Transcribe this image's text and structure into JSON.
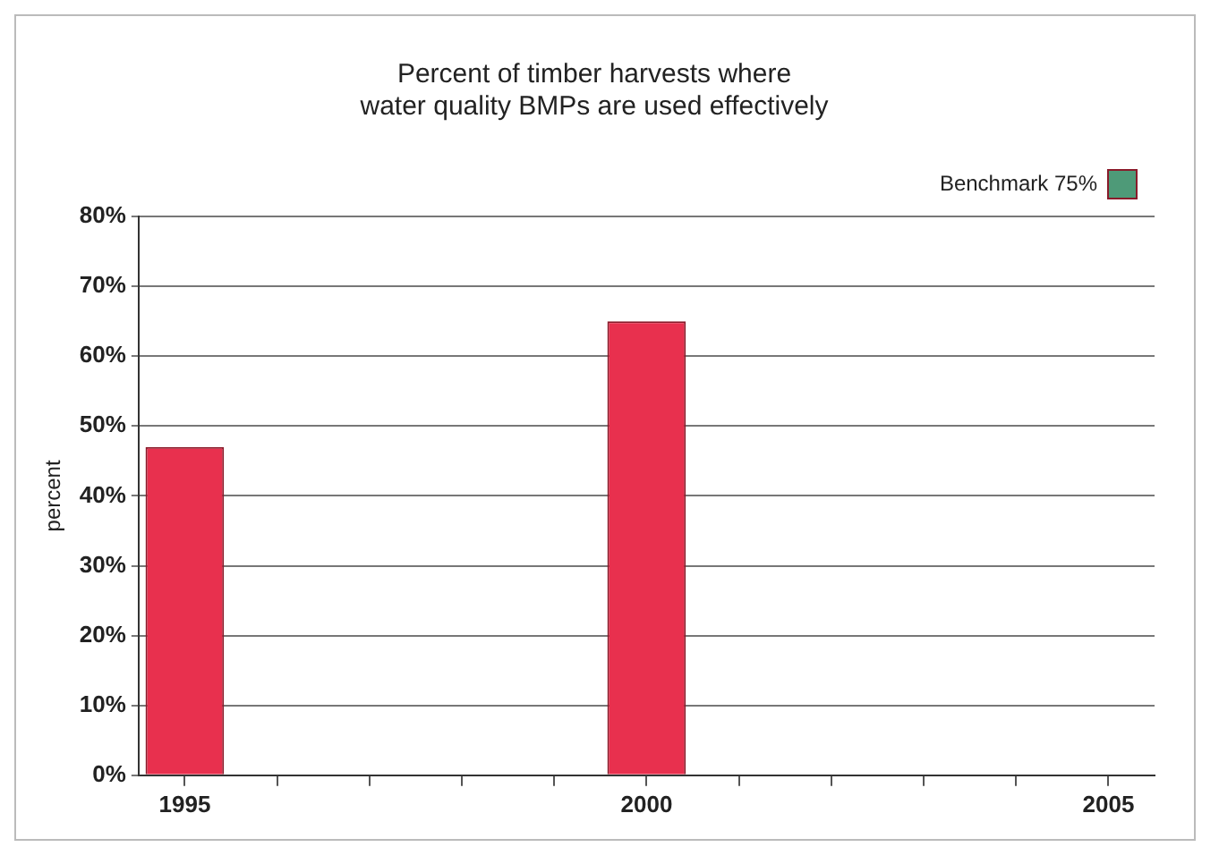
{
  "chart_data": {
    "type": "bar",
    "title": [
      "Percent of timber harvests where",
      "water quality BMPs are used effectively"
    ],
    "ylabel": "percent",
    "categories": [
      "1995",
      null,
      null,
      null,
      null,
      "2000",
      null,
      null,
      null,
      null,
      "2005"
    ],
    "series": [
      {
        "name": null,
        "color": "#e8304e",
        "values": [
          47,
          null,
          null,
          null,
          null,
          65,
          null,
          null,
          null,
          null,
          null
        ]
      },
      {
        "name": "Benchmark 75%",
        "color": "#4e9a78",
        "values": [
          null,
          null,
          null,
          null,
          null,
          null,
          null,
          null,
          null,
          null,
          null
        ]
      }
    ],
    "ylim": [
      0,
      80
    ],
    "yticks": [
      {
        "value": 0,
        "label": "0%"
      },
      {
        "value": 10,
        "label": "10%"
      },
      {
        "value": 20,
        "label": "20%"
      },
      {
        "value": 30,
        "label": "30%"
      },
      {
        "value": 40,
        "label": "40%"
      },
      {
        "value": 50,
        "label": "50%"
      },
      {
        "value": 60,
        "label": "60%"
      },
      {
        "value": 70,
        "label": "70%"
      },
      {
        "value": 80,
        "label": "80%"
      }
    ],
    "grid": "y",
    "legend": "top right"
  }
}
